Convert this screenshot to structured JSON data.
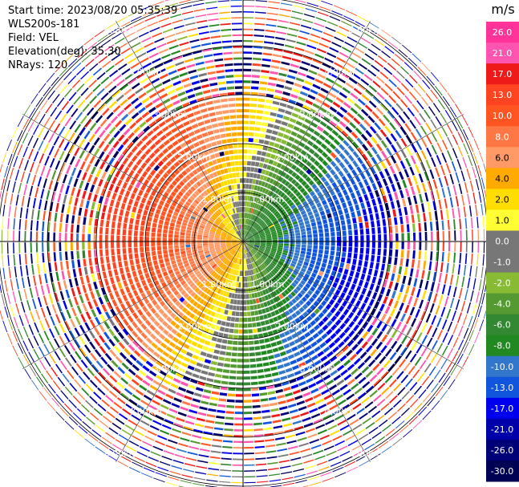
{
  "header": {
    "start_time": "Start time: 2023/08/20 05:35:39",
    "instrument": "WLS200s-181",
    "field": "Field: VEL",
    "elevation": "Elevation(deg): 35.30",
    "nrays": "NRays: 120"
  },
  "chart_data": {
    "type": "heatmap",
    "subtype": "polar-ppi",
    "field": "VEL",
    "units": "m/s",
    "nrays": 120,
    "elevation_deg": 35.3,
    "range_rings_km": [
      1.0,
      2.0,
      3.0,
      4.0,
      5.0
    ],
    "ring_label_text": "2.00km",
    "ring_labels": [
      "1.00km",
      "2.00km",
      "3.00km",
      "4.00km",
      "5.00km"
    ],
    "max_range_km": 5.2,
    "clean_data_range_km": 3.0,
    "colorbar": {
      "unit_label": "m/s",
      "tick_labels": [
        "26.0",
        "21.0",
        "17.0",
        "13.0",
        "10.0",
        "8.0",
        "6.0",
        "4.0",
        "2.0",
        "1.0",
        "0.0",
        "-1.0",
        "-2.0",
        "-4.0",
        "-6.0",
        "-8.0",
        "-10.0",
        "-13.0",
        "-17.0",
        "-21.0",
        "-26.0",
        "-30.0"
      ],
      "bins": [
        {
          "min": 26,
          "max": 30,
          "color": "#ff3399"
        },
        {
          "min": 21,
          "max": 26,
          "color": "#ff55b0"
        },
        {
          "min": 17,
          "max": 21,
          "color": "#ee1a1a"
        },
        {
          "min": 13,
          "max": 17,
          "color": "#ff4422"
        },
        {
          "min": 10,
          "max": 13,
          "color": "#ff5522"
        },
        {
          "min": 8,
          "max": 10,
          "color": "#ff7744"
        },
        {
          "min": 6,
          "max": 8,
          "color": "#ff9966"
        },
        {
          "min": 4,
          "max": 6,
          "color": "#ffaa00"
        },
        {
          "min": 2,
          "max": 4,
          "color": "#ffdd00"
        },
        {
          "min": 1,
          "max": 2,
          "color": "#ffff33"
        },
        {
          "min": 0,
          "max": 1,
          "color": "#777777"
        },
        {
          "min": -1,
          "max": 0,
          "color": "#777777"
        },
        {
          "min": -2,
          "max": -1,
          "color": "#88bb33"
        },
        {
          "min": -4,
          "max": -2,
          "color": "#559933"
        },
        {
          "min": -6,
          "max": -4,
          "color": "#338833"
        },
        {
          "min": -8,
          "max": -6,
          "color": "#228822"
        },
        {
          "min": -10,
          "max": -8,
          "color": "#3377cc"
        },
        {
          "min": -13,
          "max": -10,
          "color": "#1155dd"
        },
        {
          "min": -17,
          "max": -13,
          "color": "#0000ee"
        },
        {
          "min": -21,
          "max": -17,
          "color": "#0000aa"
        },
        {
          "min": -26,
          "max": -21,
          "color": "#000077"
        },
        {
          "min": -30,
          "max": -26,
          "color": "#000055"
        }
      ]
    },
    "wind_model": {
      "direction_toward_deg": 110,
      "max_speed_ms": 15,
      "height_speed_gradient": "increases with range"
    }
  }
}
